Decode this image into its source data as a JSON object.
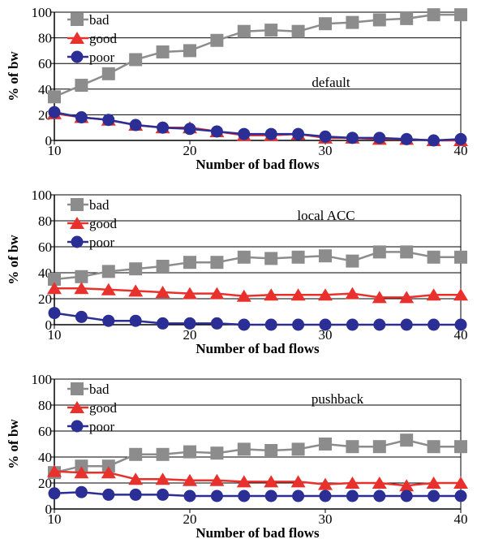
{
  "chart_data": [
    {
      "type": "line",
      "xlabel": "Number of bad flows",
      "ylabel": "% of bw",
      "annotation": "default",
      "xlim": [
        10,
        40
      ],
      "ylim": [
        0,
        100
      ],
      "xticks": [
        "10",
        "20",
        "30",
        "40"
      ],
      "yticks": [
        "0",
        "20",
        "40",
        "60",
        "80",
        "100"
      ],
      "grid": "horizontal",
      "legend_position": "top-left",
      "x": [
        10,
        12,
        14,
        16,
        18,
        20,
        22,
        24,
        26,
        28,
        30,
        32,
        34,
        36,
        38,
        40
      ],
      "series": [
        {
          "name": "bad",
          "color": "#8c8c8c",
          "marker": "square",
          "values": [
            34,
            43,
            52,
            63,
            69,
            70,
            78,
            85,
            86,
            85,
            91,
            92,
            94,
            95,
            98,
            98
          ]
        },
        {
          "name": "good",
          "color": "#e8312c",
          "marker": "triangle",
          "values": [
            21,
            18,
            16,
            12,
            10,
            10,
            7,
            4,
            4,
            5,
            2,
            2,
            1,
            1,
            0,
            0
          ]
        },
        {
          "name": "poor",
          "color": "#2b2e94",
          "marker": "circle",
          "values": [
            22,
            18,
            16,
            12,
            10,
            9,
            7,
            5,
            5,
            5,
            3,
            2,
            2,
            1,
            0,
            1
          ]
        }
      ]
    },
    {
      "type": "line",
      "xlabel": "Number of bad flows",
      "ylabel": "% of bw",
      "annotation": "local ACC",
      "xlim": [
        10,
        40
      ],
      "ylim": [
        0,
        100
      ],
      "xticks": [
        "10",
        "20",
        "30",
        "40"
      ],
      "yticks": [
        "0",
        "20",
        "40",
        "60",
        "80",
        "100"
      ],
      "grid": "horizontal",
      "legend_position": "top-left",
      "x": [
        10,
        12,
        14,
        16,
        18,
        20,
        22,
        24,
        26,
        28,
        30,
        32,
        34,
        36,
        38,
        40
      ],
      "series": [
        {
          "name": "bad",
          "color": "#8c8c8c",
          "marker": "square",
          "values": [
            35,
            37,
            41,
            43,
            45,
            48,
            48,
            52,
            51,
            52,
            53,
            49,
            56,
            56,
            52,
            52
          ]
        },
        {
          "name": "good",
          "color": "#e8312c",
          "marker": "triangle",
          "values": [
            28,
            28,
            27,
            26,
            25,
            24,
            24,
            22,
            23,
            23,
            23,
            24,
            21,
            21,
            23,
            23
          ]
        },
        {
          "name": "poor",
          "color": "#2b2e94",
          "marker": "circle",
          "values": [
            9,
            6,
            3,
            3,
            1,
            1,
            1,
            0,
            0,
            0,
            0,
            0,
            0,
            0,
            0,
            0
          ]
        }
      ]
    },
    {
      "type": "line",
      "xlabel": "Number of bad flows",
      "ylabel": "% of bw",
      "annotation": "pushback",
      "xlim": [
        10,
        40
      ],
      "ylim": [
        0,
        100
      ],
      "xticks": [
        "10",
        "20",
        "30",
        "40"
      ],
      "yticks": [
        "0",
        "20",
        "40",
        "60",
        "80",
        "100"
      ],
      "grid": "horizontal",
      "legend_position": "top-left",
      "x": [
        10,
        12,
        14,
        16,
        18,
        20,
        22,
        24,
        26,
        28,
        30,
        32,
        34,
        36,
        38,
        40
      ],
      "series": [
        {
          "name": "bad",
          "color": "#8c8c8c",
          "marker": "square",
          "values": [
            28,
            33,
            33,
            42,
            42,
            44,
            43,
            46,
            45,
            46,
            50,
            48,
            48,
            53,
            48,
            48
          ]
        },
        {
          "name": "good",
          "color": "#e8312c",
          "marker": "triangle",
          "values": [
            29,
            28,
            28,
            23,
            23,
            22,
            22,
            21,
            21,
            21,
            19,
            20,
            20,
            18,
            20,
            20
          ]
        },
        {
          "name": "poor",
          "color": "#2b2e94",
          "marker": "circle",
          "values": [
            12,
            13,
            11,
            11,
            11,
            10,
            10,
            10,
            10,
            10,
            10,
            10,
            10,
            10,
            10,
            10
          ]
        }
      ]
    }
  ]
}
